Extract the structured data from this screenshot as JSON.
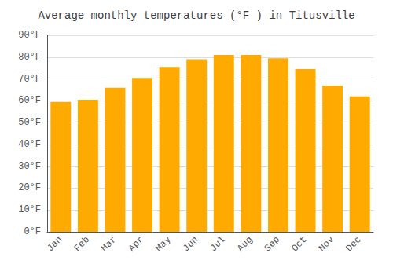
{
  "chart_data": {
    "type": "bar",
    "title": "Average monthly temperatures (°F ) in Titusville",
    "categories": [
      "Jan",
      "Feb",
      "Mar",
      "Apr",
      "May",
      "Jun",
      "Jul",
      "Aug",
      "Sep",
      "Oct",
      "Nov",
      "Dec"
    ],
    "values": [
      59.5,
      60.5,
      66,
      70.5,
      75.5,
      79,
      81,
      81,
      79.5,
      74.5,
      67,
      62
    ],
    "color": "#FFAA00",
    "ylim": [
      0,
      90
    ],
    "yticks": [
      {
        "value": 0,
        "label": "0°F"
      },
      {
        "value": 10,
        "label": "10°F"
      },
      {
        "value": 20,
        "label": "20°F"
      },
      {
        "value": 30,
        "label": "30°F"
      },
      {
        "value": 40,
        "label": "40°F"
      },
      {
        "value": 50,
        "label": "50°F"
      },
      {
        "value": 60,
        "label": "60°F"
      },
      {
        "value": 70,
        "label": "70°F"
      },
      {
        "value": 80,
        "label": "80°F"
      },
      {
        "value": 90,
        "label": "90°F"
      }
    ],
    "grid": true
  }
}
